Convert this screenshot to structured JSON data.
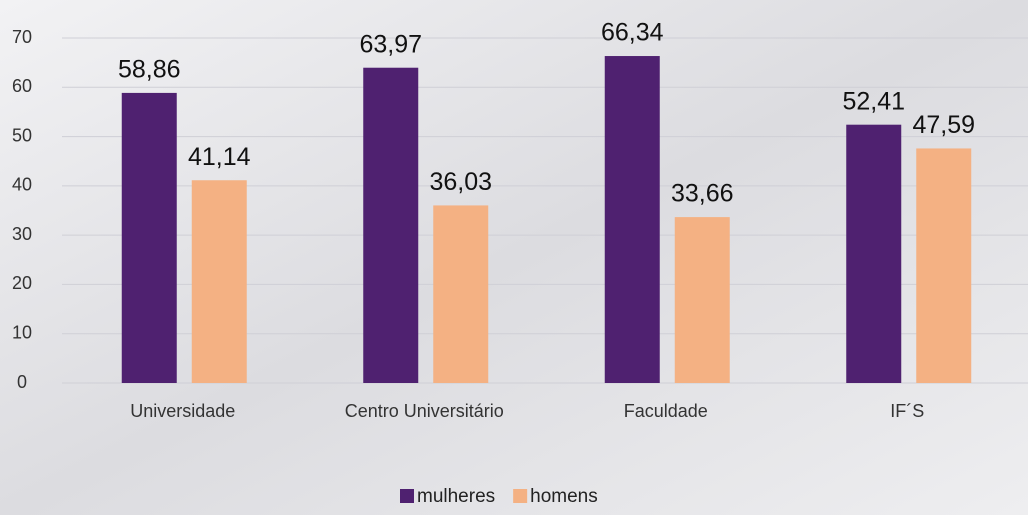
{
  "chart_data": {
    "type": "bar",
    "categories": [
      "Universidade",
      "Centro Universitário",
      "Faculdade",
      "IF´S"
    ],
    "series": [
      {
        "name": "mulheres",
        "color": "#4f2170",
        "values": [
          58.86,
          63.97,
          66.34,
          52.41
        ],
        "value_labels": [
          "58,86",
          "63,97",
          "66,34",
          "52,41"
        ]
      },
      {
        "name": "homens",
        "color": "#f4b183",
        "values": [
          41.14,
          36.03,
          33.66,
          47.59
        ],
        "value_labels": [
          "41,14",
          "36,03",
          "33,66",
          "47,59"
        ]
      }
    ],
    "ylim": [
      0,
      70
    ],
    "yticks": [
      0,
      10,
      20,
      30,
      40,
      50,
      60,
      70
    ],
    "grid": true,
    "legend": "bottom"
  }
}
